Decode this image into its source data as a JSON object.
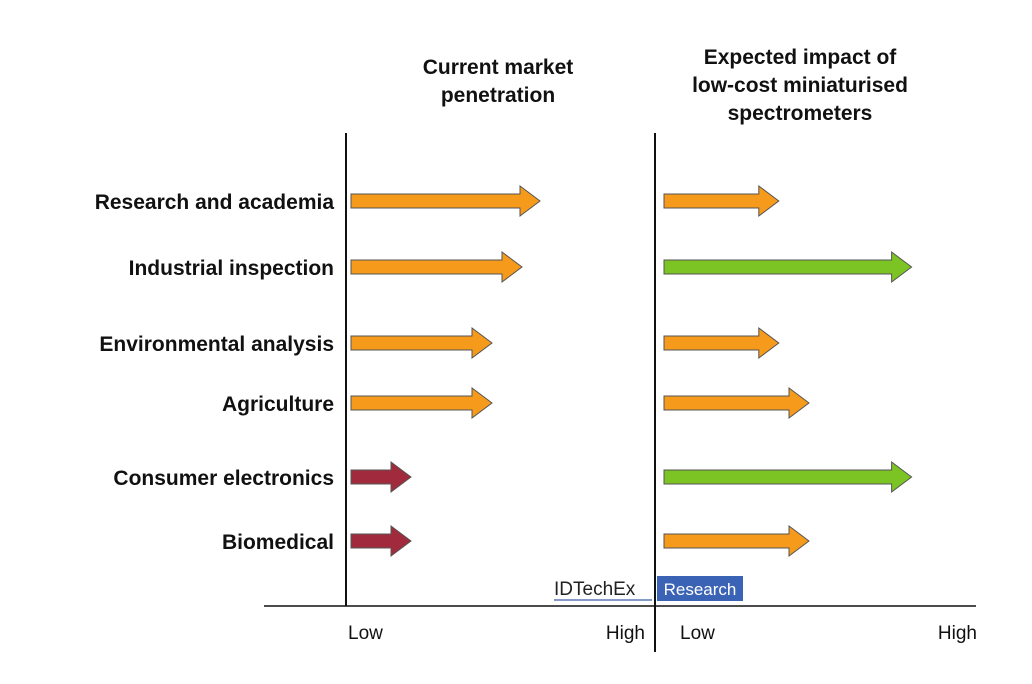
{
  "chart_data": {
    "type": "bar",
    "categories": [
      "Research and academia",
      "Industrial inspection",
      "Environmental analysis",
      "Agriculture",
      "Consumer electronics",
      "Biomedical"
    ],
    "panels": [
      {
        "title": [
          "Current market",
          "penetration"
        ],
        "x_labels": [
          "Low",
          "High"
        ],
        "values": [
          0.63,
          0.57,
          0.47,
          0.47,
          0.2,
          0.2
        ],
        "levels": [
          "medium",
          "medium",
          "medium",
          "medium",
          "low",
          "low"
        ]
      },
      {
        "title": [
          "Expected impact of",
          "low-cost miniaturised",
          "spectrometers"
        ],
        "x_labels": [
          "Low",
          "High"
        ],
        "values": [
          0.38,
          0.82,
          0.38,
          0.48,
          0.82,
          0.48
        ],
        "levels": [
          "medium",
          "high",
          "medium",
          "medium",
          "high",
          "medium"
        ]
      }
    ],
    "colors": {
      "low": "#a12a3c",
      "medium": "#f59a1b",
      "high": "#7cc424"
    },
    "xlim": [
      0,
      1
    ]
  },
  "logo": {
    "brand": "IDTechEx",
    "suffix": "Research"
  }
}
